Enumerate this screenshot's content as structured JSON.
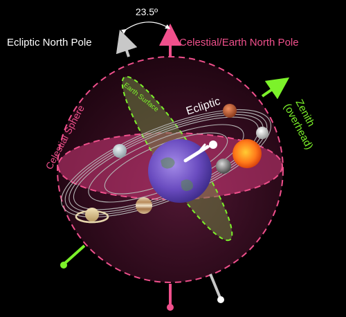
{
  "labels": {
    "tilt_angle": "23.5º",
    "ecliptic_north_pole": "Ecliptic North Pole",
    "celestial_earth_north_pole": "Celestial/Earth North Pole",
    "zenith_line1": "Zenith",
    "zenith_line2": "(overhead)",
    "celestial_sphere": "Celestial Sphere",
    "earth_surface": "Earth Surface",
    "ecliptic": "Ecliptic"
  },
  "colors": {
    "background": "#000000",
    "celestial": "#f0508c",
    "ecliptic_pole": "#c8c8c8",
    "zenith": "#7cf22a",
    "earth_surface_plane": "#5a6a3a",
    "earth": "#7a55c8",
    "sun": "#ff6a1a",
    "text_white": "#ffffff",
    "ecliptic_orbits": "#b5b5b5"
  },
  "bodies": [
    "sun",
    "earth",
    "moon",
    "mercury",
    "venus",
    "mars",
    "jupiter",
    "saturn",
    "uranus",
    "observer"
  ]
}
